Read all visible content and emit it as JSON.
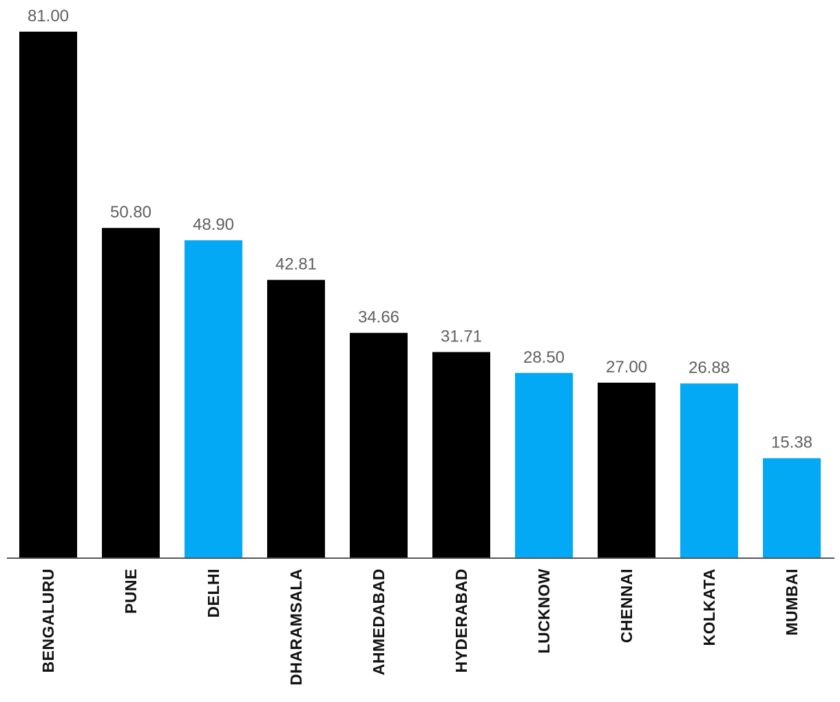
{
  "chart_data": {
    "type": "bar",
    "title": "",
    "xlabel": "",
    "ylabel": "",
    "ylim": [
      0,
      81
    ],
    "grid": false,
    "legend": "none",
    "categories": [
      "BENGALURU",
      "PUNE",
      "DELHI",
      "DHARAMSALA",
      "AHMEDABAD",
      "HYDERABAD",
      "LUCKNOW",
      "CHENNAI",
      "KOLKATA",
      "MUMBAI"
    ],
    "values": [
      81.0,
      50.8,
      48.9,
      42.81,
      34.66,
      31.71,
      28.5,
      27.0,
      26.88,
      15.38
    ],
    "value_labels": [
      "81.00",
      "50.80",
      "48.90",
      "42.81",
      "34.66",
      "31.71",
      "28.50",
      "27.00",
      "26.88",
      "15.38"
    ],
    "bar_colors": [
      "#000000",
      "#000000",
      "#03a9f4",
      "#000000",
      "#000000",
      "#000000",
      "#03a9f4",
      "#000000",
      "#03a9f4",
      "#03a9f4"
    ],
    "axis_color": "#555555",
    "value_label_color": "#5f5f5f",
    "category_label_color": "#111111"
  }
}
